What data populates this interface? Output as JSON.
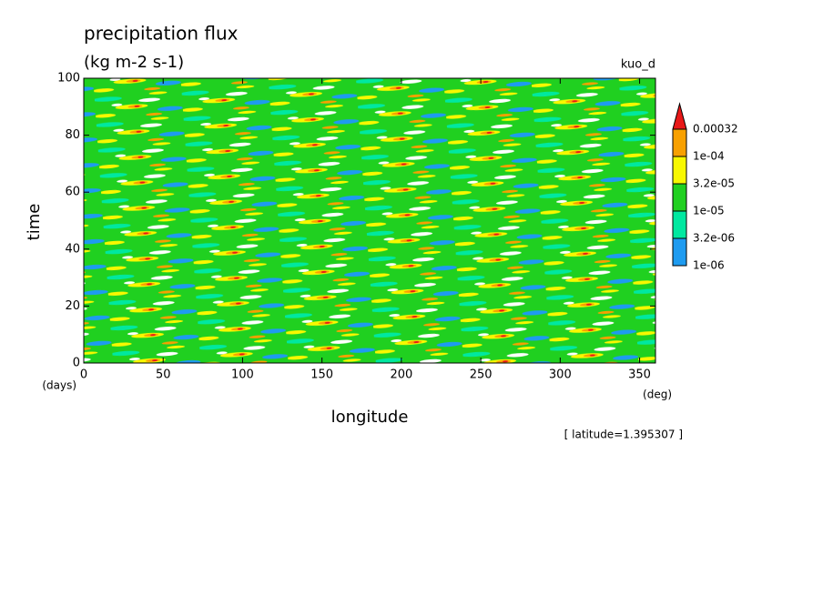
{
  "chart_data": {
    "type": "contour",
    "title": "precipitation flux",
    "subtitle": "(kg m-2 s-1)",
    "run_label": "kuo_d",
    "x_label": "longitude",
    "x_unit": "(deg)",
    "y_label": "time",
    "y_unit": "(days)",
    "annotation": "[ latitude=1.395307 ]",
    "xlim": [
      0,
      360
    ],
    "xticks": [
      0,
      50,
      100,
      150,
      200,
      250,
      300,
      350
    ],
    "ylim": [
      0,
      100
    ],
    "yticks": [
      0,
      20,
      40,
      60,
      80,
      100
    ],
    "levels": [
      {
        "value": 1e-06,
        "label": "1e-06"
      },
      {
        "value": 3.2e-06,
        "label": "3.2e-06"
      },
      {
        "value": 1e-05,
        "label": "1e-05"
      },
      {
        "value": 3.2e-05,
        "label": "3.2e-05"
      },
      {
        "value": 0.0001,
        "label": "1e-04"
      },
      0.00032
    ],
    "colors": [
      "#1e9bf0",
      "#00e8a0",
      "#20d020",
      "#f8f800",
      "#f8a000",
      "#e81818"
    ]
  }
}
